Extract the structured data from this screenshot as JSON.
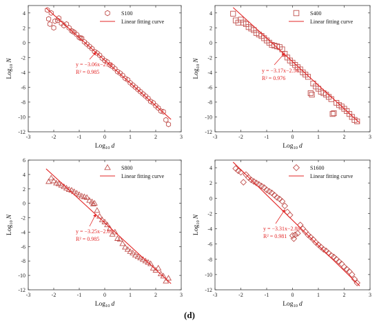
{
  "figure_label": "(d)",
  "colors": {
    "marker": "#c0504d",
    "fit_line": "#e32626",
    "annotation": "#e32626",
    "axis": "#333333"
  },
  "chart_data": [
    {
      "type": "scatter",
      "panel": "S100",
      "xlabel_base": "Log",
      "xlabel_sub": "10",
      "xlabel_var": "d",
      "ylabel_base": "Log",
      "ylabel_sub": "10",
      "ylabel_var": "N",
      "xlim": [
        -3,
        3
      ],
      "ylim": [
        -12,
        5
      ],
      "xticks": [
        -3,
        -2,
        -1,
        0,
        1,
        2,
        3
      ],
      "yticks": [
        -12,
        -10,
        -8,
        -6,
        -4,
        -2,
        0,
        2,
        4
      ],
      "marker": "hexagon",
      "legend": {
        "marker_label": "S100",
        "line_label": "Linear fitting curve",
        "position": "top-right"
      },
      "fit": {
        "slope": -3.06,
        "intercept": -2.38,
        "x_range": [
          -2.3,
          2.6
        ]
      },
      "equation": "y = −3.06x−2.38",
      "r2": "R² = 0.985",
      "arrow_to": [
        -0.35,
        -1.3
      ],
      "x": [
        -2.25,
        -2.2,
        -2.15,
        -2.1,
        -2.0,
        -1.95,
        -1.85,
        -1.8,
        -1.7,
        -1.6,
        -1.5,
        -1.4,
        -1.3,
        -1.25,
        -1.2,
        -1.1,
        -1.0,
        -0.95,
        -0.9,
        -0.8,
        -0.7,
        -0.6,
        -0.5,
        -0.4,
        -0.3,
        -0.2,
        -0.1,
        0.0,
        0.1,
        0.2,
        0.3,
        0.4,
        0.5,
        0.6,
        0.7,
        0.8,
        0.9,
        1.0,
        1.1,
        1.2,
        1.3,
        1.4,
        1.5,
        1.6,
        1.7,
        1.8,
        1.9,
        2.0,
        2.1,
        2.2,
        2.3,
        2.4,
        2.5
      ],
      "y": [
        4.4,
        3.2,
        2.5,
        4.0,
        2.0,
        2.9,
        3.0,
        3.3,
        2.6,
        2.3,
        2.5,
        2.0,
        1.6,
        1.5,
        1.4,
        1.1,
        0.7,
        0.6,
        0.6,
        0.1,
        -0.2,
        -0.5,
        -0.8,
        -1.2,
        -1.4,
        -1.7,
        -2.1,
        -2.4,
        -2.6,
        -3.0,
        -3.2,
        -3.5,
        -3.9,
        -4.1,
        -4.4,
        -4.8,
        -5.0,
        -5.4,
        -5.7,
        -6.0,
        -6.3,
        -6.6,
        -6.9,
        -7.2,
        -7.5,
        -7.9,
        -8.1,
        -8.5,
        -8.8,
        -9.2,
        -9.3,
        -10.4,
        -11.0
      ]
    },
    {
      "type": "scatter",
      "panel": "S400",
      "xlabel_base": "Log",
      "xlabel_sub": "10",
      "xlabel_var": "d",
      "ylabel_base": "Log",
      "ylabel_sub": "10",
      "ylabel_var": "N",
      "xlim": [
        -3,
        3
      ],
      "ylim": [
        -12,
        5
      ],
      "xticks": [
        -3,
        -2,
        -1,
        0,
        1,
        2,
        3
      ],
      "yticks": [
        -12,
        -10,
        -8,
        -6,
        -4,
        -2,
        0,
        2,
        4
      ],
      "marker": "square",
      "legend": {
        "marker_label": "S400",
        "line_label": "Linear fitting curve",
        "position": "top-right"
      },
      "fit": {
        "slope": -3.17,
        "intercept": -2.56,
        "x_range": [
          -2.3,
          2.6
        ]
      },
      "equation": "y = −3.17x−2.56",
      "r2": "R² = 0.976",
      "arrow_to": [
        -0.3,
        -1.4
      ],
      "x": [
        -2.3,
        -2.2,
        -2.1,
        -2.0,
        -1.9,
        -1.8,
        -1.7,
        -1.6,
        -1.5,
        -1.4,
        -1.3,
        -1.2,
        -1.1,
        -1.0,
        -0.9,
        -0.8,
        -0.7,
        -0.6,
        -0.5,
        -0.4,
        -0.3,
        -0.2,
        -0.1,
        0.0,
        0.1,
        0.2,
        0.3,
        0.4,
        0.5,
        0.6,
        0.7,
        0.75,
        0.8,
        0.9,
        1.0,
        1.1,
        1.2,
        1.3,
        1.4,
        1.5,
        1.55,
        1.6,
        1.7,
        1.8,
        1.9,
        2.0,
        2.1,
        2.2,
        2.3,
        2.4,
        2.5
      ],
      "y": [
        3.9,
        3.0,
        2.7,
        3.1,
        2.7,
        2.5,
        2.1,
        1.9,
        1.7,
        1.3,
        1.1,
        0.9,
        0.6,
        0.3,
        0.0,
        -0.3,
        -0.4,
        -0.5,
        -0.6,
        -0.9,
        -1.5,
        -2.0,
        -2.4,
        -2.7,
        -3.0,
        -3.3,
        -3.6,
        -4.0,
        -4.3,
        -4.6,
        -6.8,
        -7.0,
        -5.5,
        -5.9,
        -6.2,
        -6.6,
        -6.8,
        -7.0,
        -7.3,
        -7.6,
        -9.6,
        -9.5,
        -8.1,
        -8.4,
        -8.6,
        -8.9,
        -9.2,
        -9.6,
        -10.0,
        -10.4,
        -10.6
      ]
    },
    {
      "type": "scatter",
      "panel": "S800",
      "xlabel_base": "Log",
      "xlabel_sub": "10",
      "xlabel_var": "d",
      "ylabel_base": "Log",
      "ylabel_sub": "10",
      "ylabel_var": "N",
      "xlim": [
        -3,
        3
      ],
      "ylim": [
        -12,
        6
      ],
      "xticks": [
        -3,
        -2,
        -1,
        0,
        1,
        2,
        3
      ],
      "yticks": [
        -12,
        -10,
        -8,
        -6,
        -4,
        -2,
        0,
        2,
        4,
        6
      ],
      "marker": "triangle",
      "legend": {
        "marker_label": "S800",
        "line_label": "Linear fitting curve",
        "position": "top-right"
      },
      "fit": {
        "slope": -3.25,
        "intercept": -2.69,
        "x_range": [
          -2.3,
          2.6
        ]
      },
      "equation": "y = −3.25x−2.69",
      "r2": "R² = 0.985",
      "arrow_to": [
        -0.35,
        -1.5
      ],
      "x": [
        -2.2,
        -2.1,
        -2.0,
        -1.9,
        -1.8,
        -1.7,
        -1.6,
        -1.5,
        -1.4,
        -1.3,
        -1.2,
        -1.1,
        -1.0,
        -0.9,
        -0.8,
        -0.7,
        -0.6,
        -0.5,
        -0.45,
        -0.4,
        -0.3,
        -0.2,
        -0.1,
        0.0,
        0.1,
        0.2,
        0.3,
        0.4,
        0.5,
        0.6,
        0.7,
        0.8,
        0.9,
        1.0,
        1.1,
        1.2,
        1.3,
        1.4,
        1.5,
        1.6,
        1.7,
        1.8,
        1.9,
        2.0,
        2.1,
        2.2,
        2.3,
        2.4,
        2.5
      ],
      "y": [
        3.0,
        3.5,
        3.1,
        2.8,
        2.7,
        2.5,
        2.3,
        2.1,
        1.9,
        1.8,
        1.6,
        1.4,
        1.2,
        1.0,
        0.9,
        0.8,
        0.4,
        0.2,
        -0.1,
        0.0,
        -1.0,
        -1.8,
        -2.3,
        -2.6,
        -3.0,
        -3.5,
        -4.3,
        -4.0,
        -4.9,
        -5.0,
        -5.6,
        -6.1,
        -6.4,
        -6.7,
        -6.9,
        -7.2,
        -7.4,
        -7.6,
        -7.8,
        -8.0,
        -8.2,
        -8.4,
        -9.0,
        -9.3,
        -9.0,
        -9.8,
        -10.1,
        -10.8,
        -10.4
      ]
    },
    {
      "type": "scatter",
      "panel": "S1600",
      "xlabel_base": "Log",
      "xlabel_sub": "10",
      "xlabel_var": "d",
      "ylabel_base": "Log",
      "ylabel_sub": "10",
      "ylabel_var": "N",
      "xlim": [
        -3,
        3
      ],
      "ylim": [
        -12,
        5
      ],
      "xticks": [
        -3,
        -2,
        -1,
        0,
        1,
        2,
        3
      ],
      "yticks": [
        -12,
        -10,
        -8,
        -6,
        -4,
        -2,
        0,
        2,
        4
      ],
      "marker": "diamond",
      "legend": {
        "marker_label": "S1600",
        "line_label": "Linear fitting curve",
        "position": "top-right"
      },
      "fit": {
        "slope": -3.31,
        "intercept": -2.88,
        "x_range": [
          -2.3,
          2.6
        ]
      },
      "equation": "y = −3.31x−2.88",
      "r2": "R² = 0.981",
      "arrow_to": [
        -0.3,
        -1.5
      ],
      "x": [
        -2.2,
        -2.1,
        -2.0,
        -1.9,
        -1.8,
        -1.7,
        -1.6,
        -1.5,
        -1.4,
        -1.3,
        -1.2,
        -1.1,
        -1.0,
        -0.9,
        -0.8,
        -0.7,
        -0.6,
        -0.5,
        -0.4,
        -0.3,
        -0.2,
        -0.1,
        0.0,
        0.05,
        0.1,
        0.2,
        0.3,
        0.4,
        0.5,
        0.6,
        0.7,
        0.8,
        0.9,
        1.0,
        1.1,
        1.2,
        1.3,
        1.4,
        1.5,
        1.6,
        1.7,
        1.8,
        1.9,
        2.0,
        2.1,
        2.2,
        2.3,
        2.4,
        2.5
      ],
      "y": [
        3.9,
        3.6,
        3.4,
        2.1,
        3.1,
        2.7,
        2.4,
        2.2,
        2.0,
        1.8,
        1.6,
        1.4,
        1.1,
        0.9,
        0.7,
        0.4,
        0.1,
        -0.1,
        -0.4,
        -1.0,
        -1.8,
        -2.2,
        -4.9,
        -5.3,
        -4.8,
        -4.6,
        -3.5,
        -4.0,
        -4.4,
        -4.8,
        -5.1,
        -5.4,
        -5.8,
        -6.1,
        -6.4,
        -6.7,
        -6.9,
        -7.2,
        -7.5,
        -7.7,
        -8.0,
        -8.3,
        -8.6,
        -9.0,
        -9.3,
        -9.6,
        -10.0,
        -10.6,
        -11.1
      ]
    }
  ]
}
